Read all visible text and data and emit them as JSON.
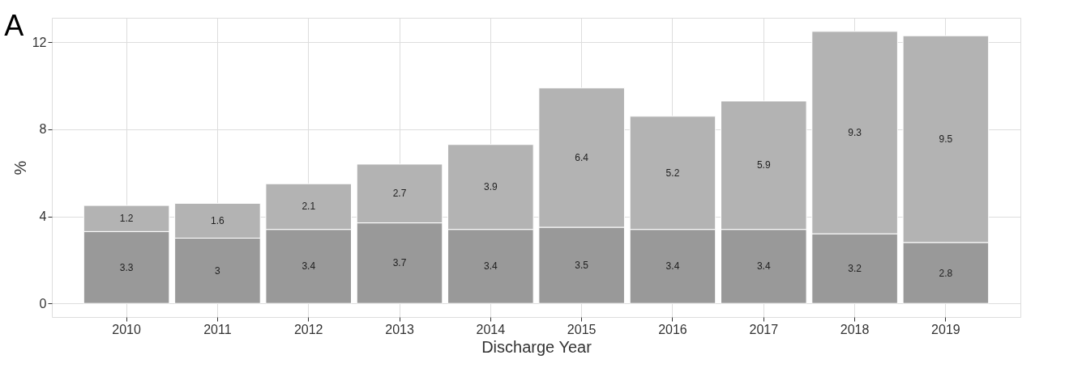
{
  "chart_data": {
    "type": "bar",
    "title": "A",
    "xlabel": "Discharge Year",
    "ylabel": "%",
    "categories": [
      "2010",
      "2011",
      "2012",
      "2013",
      "2014",
      "2015",
      "2016",
      "2017",
      "2018",
      "2019"
    ],
    "series": [
      {
        "color": "#999999",
        "values": [
          3.3,
          3,
          3.4,
          3.7,
          3.4,
          3.5,
          3.4,
          3.4,
          3.2,
          2.8
        ]
      },
      {
        "color": "#b3b3b3",
        "values": [
          1.2,
          1.6,
          2.1,
          2.7,
          3.9,
          6.4,
          5.2,
          5.9,
          9.3,
          9.5
        ]
      }
    ],
    "stacked": true,
    "data_labels": true,
    "ylim": [
      -0.625,
      13.125
    ],
    "yticks": [
      0,
      4,
      8,
      12
    ],
    "grid": true,
    "legend": false
  }
}
